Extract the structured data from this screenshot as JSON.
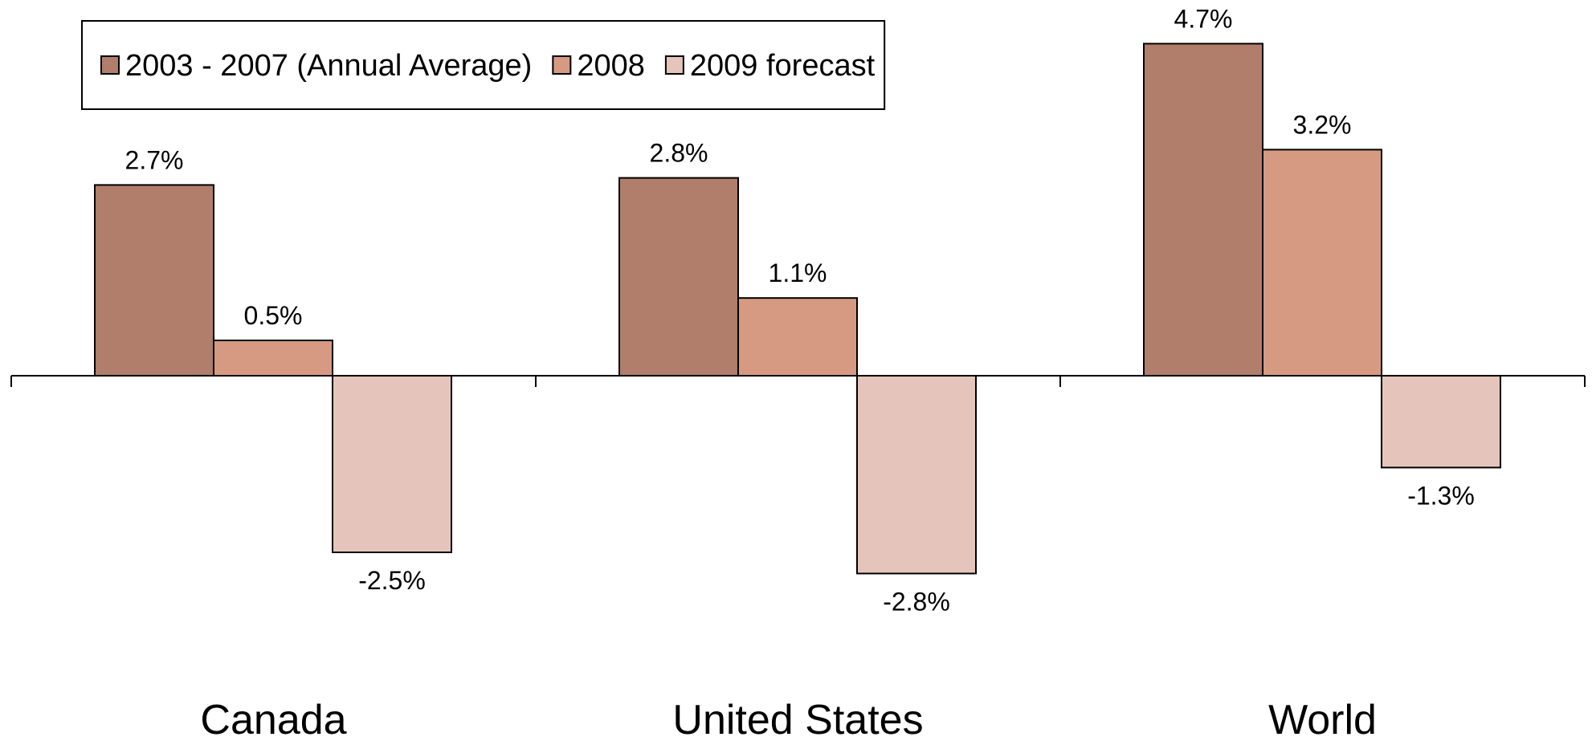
{
  "chart_data": {
    "type": "bar",
    "title": "",
    "xlabel": "",
    "ylabel": "",
    "categories": [
      "Canada",
      "United States",
      "World"
    ],
    "series": [
      {
        "name": "2003 - 2007 (Annual Average)",
        "values": [
          2.7,
          2.8,
          4.7
        ],
        "color": "#B07E6A"
      },
      {
        "name": "2008",
        "values": [
          0.5,
          1.1,
          3.2
        ],
        "color": "#D69A82"
      },
      {
        "name": "2009 forecast",
        "values": [
          -2.5,
          -2.8,
          -1.3
        ],
        "color": "#E5C5BB"
      }
    ],
    "value_format": "percent_1dp",
    "value_suffix": "%",
    "grid": false,
    "legend": "top-left",
    "data_labels": true
  }
}
